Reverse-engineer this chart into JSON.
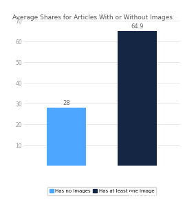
{
  "title": "Average Shares for Articles With or Without Images",
  "categories": [
    "Has no Images",
    "Has at least one image"
  ],
  "values": [
    28,
    64.9
  ],
  "bar_colors": [
    "#4da6ff",
    "#152644"
  ],
  "value_labels": [
    "28",
    "64.9"
  ],
  "ylim": [
    0,
    70
  ],
  "yticks": [
    10,
    20,
    30,
    40,
    50,
    60,
    70
  ],
  "legend_labels": [
    "Has no Images",
    "Has at least one image"
  ],
  "legend_colors": [
    "#4da6ff",
    "#152644"
  ],
  "background_color": "#ffffff",
  "title_fontsize": 6.5,
  "label_fontsize": 6.0,
  "tick_fontsize": 5.5,
  "okdork_bg": "#55bb00",
  "buzzsumo_bg": "#2196f3"
}
